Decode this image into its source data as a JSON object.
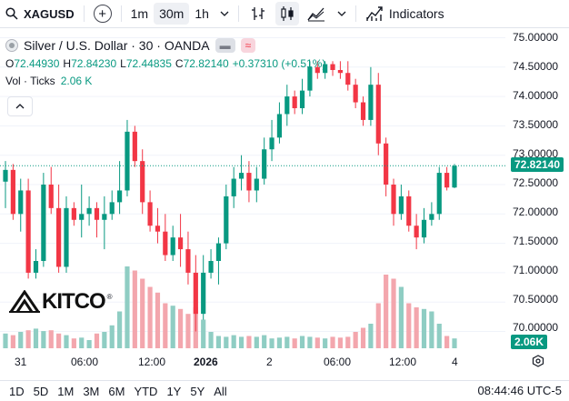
{
  "toolbar": {
    "symbol": "XAGUSD",
    "intervals": [
      "1m",
      "30m",
      "1h"
    ],
    "active_interval": "30m",
    "indicators_label": "Indicators"
  },
  "legend": {
    "title": "Silver / U.S. Dollar · 30 · OANDA",
    "ohlc": {
      "o": "72.44930",
      "h": "72.84230",
      "l": "72.44835",
      "c": "72.82140",
      "change": "+0.37310 (+0.51%)"
    },
    "volume_label": "Vol · Ticks",
    "volume_value": "2.06 K"
  },
  "price_axis": {
    "labels": [
      "75.00000",
      "74.50000",
      "74.00000",
      "73.50000",
      "73.00000",
      "72.50000",
      "72.00000",
      "71.50000",
      "71.00000",
      "70.50000",
      "70.00000"
    ],
    "last_price": "72.82140",
    "last_volume": "2.06K"
  },
  "time_axis": {
    "labels": [
      "31",
      "06:00",
      "12:00",
      "2026",
      "2",
      "06:00",
      "12:00",
      "4"
    ]
  },
  "ranges": [
    "1D",
    "5D",
    "1M",
    "3M",
    "6M",
    "YTD",
    "1Y",
    "5Y",
    "All"
  ],
  "clock": "08:44:46 UTC-5",
  "watermark": "KITCO",
  "colors": {
    "up": "#089981",
    "down": "#f23645",
    "vol_up": "#8fcdc3",
    "vol_down": "#f3a6ad"
  },
  "chart_data": {
    "type": "candlestick",
    "ylim": [
      69.9,
      75.1
    ],
    "candles": [
      {
        "o": 72.55,
        "h": 72.9,
        "l": 72.1,
        "c": 72.75
      },
      {
        "o": 72.75,
        "h": 72.85,
        "l": 71.9,
        "c": 72.0
      },
      {
        "o": 72.0,
        "h": 72.6,
        "l": 71.7,
        "c": 72.4
      },
      {
        "o": 72.4,
        "h": 72.6,
        "l": 70.9,
        "c": 71.0
      },
      {
        "o": 71.0,
        "h": 71.4,
        "l": 70.9,
        "c": 71.2
      },
      {
        "o": 71.2,
        "h": 72.7,
        "l": 71.1,
        "c": 72.5
      },
      {
        "o": 72.5,
        "h": 72.8,
        "l": 72.0,
        "c": 72.1
      },
      {
        "o": 72.1,
        "h": 72.5,
        "l": 71.0,
        "c": 71.1
      },
      {
        "o": 71.1,
        "h": 72.3,
        "l": 71.0,
        "c": 72.1
      },
      {
        "o": 72.1,
        "h": 72.2,
        "l": 71.8,
        "c": 71.9
      },
      {
        "o": 71.9,
        "h": 72.5,
        "l": 71.6,
        "c": 72.0
      },
      {
        "o": 72.0,
        "h": 72.3,
        "l": 71.8,
        "c": 72.1
      },
      {
        "o": 72.1,
        "h": 72.2,
        "l": 71.6,
        "c": 71.9
      },
      {
        "o": 71.9,
        "h": 72.3,
        "l": 71.4,
        "c": 72.0
      },
      {
        "o": 72.0,
        "h": 72.4,
        "l": 71.9,
        "c": 72.2
      },
      {
        "o": 72.2,
        "h": 72.9,
        "l": 72.0,
        "c": 72.4
      },
      {
        "o": 72.4,
        "h": 73.6,
        "l": 72.3,
        "c": 73.4
      },
      {
        "o": 73.4,
        "h": 73.5,
        "l": 72.8,
        "c": 72.9
      },
      {
        "o": 72.9,
        "h": 73.1,
        "l": 72.0,
        "c": 72.2
      },
      {
        "o": 72.2,
        "h": 72.4,
        "l": 71.7,
        "c": 71.8
      },
      {
        "o": 71.8,
        "h": 72.1,
        "l": 71.5,
        "c": 71.7
      },
      {
        "o": 71.7,
        "h": 72.0,
        "l": 71.2,
        "c": 71.3
      },
      {
        "o": 71.3,
        "h": 71.8,
        "l": 71.2,
        "c": 71.6
      },
      {
        "o": 71.6,
        "h": 72.0,
        "l": 71.1,
        "c": 71.4
      },
      {
        "o": 71.4,
        "h": 71.7,
        "l": 70.8,
        "c": 71.0
      },
      {
        "o": 71.0,
        "h": 71.3,
        "l": 70.0,
        "c": 70.3
      },
      {
        "o": 70.3,
        "h": 71.3,
        "l": 70.2,
        "c": 71.0
      },
      {
        "o": 71.0,
        "h": 71.4,
        "l": 70.9,
        "c": 71.2
      },
      {
        "o": 71.2,
        "h": 71.6,
        "l": 70.8,
        "c": 71.5
      },
      {
        "o": 71.5,
        "h": 72.5,
        "l": 71.4,
        "c": 72.3
      },
      {
        "o": 72.3,
        "h": 72.8,
        "l": 72.1,
        "c": 72.6
      },
      {
        "o": 72.6,
        "h": 73.0,
        "l": 72.4,
        "c": 72.7
      },
      {
        "o": 72.7,
        "h": 72.9,
        "l": 72.2,
        "c": 72.4
      },
      {
        "o": 72.4,
        "h": 72.8,
        "l": 72.2,
        "c": 72.6
      },
      {
        "o": 72.6,
        "h": 73.3,
        "l": 72.5,
        "c": 73.1
      },
      {
        "o": 73.1,
        "h": 73.6,
        "l": 72.9,
        "c": 73.3
      },
      {
        "o": 73.3,
        "h": 73.9,
        "l": 73.2,
        "c": 73.7
      },
      {
        "o": 73.7,
        "h": 74.2,
        "l": 73.5,
        "c": 74.0
      },
      {
        "o": 74.0,
        "h": 74.1,
        "l": 73.7,
        "c": 73.8
      },
      {
        "o": 73.8,
        "h": 74.3,
        "l": 73.7,
        "c": 74.1
      },
      {
        "o": 74.1,
        "h": 74.6,
        "l": 74.0,
        "c": 74.5
      },
      {
        "o": 74.5,
        "h": 74.6,
        "l": 74.3,
        "c": 74.4
      },
      {
        "o": 74.4,
        "h": 74.6,
        "l": 74.3,
        "c": 74.55
      },
      {
        "o": 74.55,
        "h": 74.6,
        "l": 74.35,
        "c": 74.45
      },
      {
        "o": 74.45,
        "h": 74.6,
        "l": 74.3,
        "c": 74.4
      },
      {
        "o": 74.4,
        "h": 74.6,
        "l": 74.1,
        "c": 74.2
      },
      {
        "o": 74.2,
        "h": 74.3,
        "l": 73.8,
        "c": 73.9
      },
      {
        "o": 73.9,
        "h": 74.0,
        "l": 73.5,
        "c": 73.6
      },
      {
        "o": 73.6,
        "h": 74.5,
        "l": 73.5,
        "c": 74.2
      },
      {
        "o": 74.2,
        "h": 74.4,
        "l": 73.0,
        "c": 73.2
      },
      {
        "o": 73.2,
        "h": 73.3,
        "l": 72.3,
        "c": 72.5
      },
      {
        "o": 72.5,
        "h": 72.6,
        "l": 71.8,
        "c": 72.0
      },
      {
        "o": 72.0,
        "h": 72.5,
        "l": 71.9,
        "c": 72.3
      },
      {
        "o": 72.3,
        "h": 72.4,
        "l": 71.7,
        "c": 71.8
      },
      {
        "o": 71.8,
        "h": 72.0,
        "l": 71.4,
        "c": 71.6
      },
      {
        "o": 71.6,
        "h": 72.1,
        "l": 71.5,
        "c": 71.9
      },
      {
        "o": 71.9,
        "h": 72.2,
        "l": 71.8,
        "c": 72.0
      },
      {
        "o": 72.0,
        "h": 72.8,
        "l": 71.9,
        "c": 72.7
      },
      {
        "o": 72.7,
        "h": 72.8,
        "l": 72.4,
        "c": 72.45
      },
      {
        "o": 72.45,
        "h": 72.85,
        "l": 72.44,
        "c": 72.82
      }
    ],
    "volumes": [
      0.18,
      0.16,
      0.2,
      0.22,
      0.24,
      0.21,
      0.22,
      0.18,
      0.16,
      0.12,
      0.13,
      0.1,
      0.18,
      0.2,
      0.28,
      0.45,
      1.0,
      0.95,
      0.85,
      0.75,
      0.68,
      0.55,
      0.52,
      0.48,
      0.42,
      0.5,
      0.35,
      0.2,
      0.15,
      0.14,
      0.16,
      0.14,
      0.15,
      0.14,
      0.16,
      0.12,
      0.13,
      0.14,
      0.12,
      0.15,
      0.14,
      0.13,
      0.12,
      0.14,
      0.13,
      0.14,
      0.2,
      0.25,
      0.3,
      0.55,
      0.9,
      0.85,
      0.75,
      0.55,
      0.5,
      0.48,
      0.45,
      0.3,
      0.15,
      0.12
    ]
  }
}
